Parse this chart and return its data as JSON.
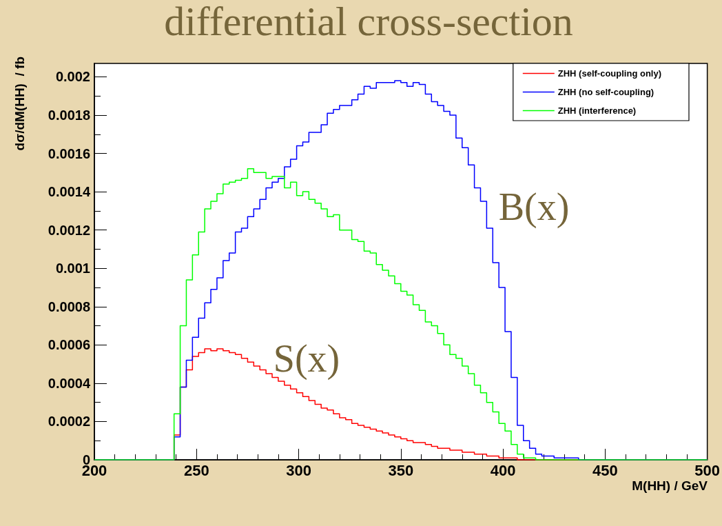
{
  "chart_data": {
    "type": "histogram",
    "title": "differential cross-section",
    "xlabel": "M(HH) / GeV",
    "ylabel": "dσ/dM(HH)  / fb",
    "bins": [
      200,
      203,
      206,
      209,
      212,
      215,
      218,
      221,
      224,
      227,
      230,
      233,
      236,
      239,
      242,
      245,
      248,
      251,
      254,
      257,
      260,
      263,
      266,
      269,
      272,
      275,
      278,
      281,
      284,
      287,
      290,
      293,
      296,
      299,
      302,
      305,
      308,
      311,
      314,
      317,
      320,
      323,
      326,
      329,
      332,
      335,
      338,
      341,
      344,
      347,
      350,
      353,
      356,
      359,
      362,
      365,
      368,
      371,
      374,
      377,
      380,
      383,
      386,
      389,
      392,
      395,
      398,
      401,
      404,
      407,
      410,
      413,
      416,
      419,
      422,
      425,
      428,
      431,
      434,
      437,
      440,
      443,
      446,
      449,
      452,
      455,
      458,
      461,
      464,
      467,
      470,
      473,
      476,
      479,
      482,
      485,
      488,
      491,
      494,
      497,
      500
    ],
    "series": [
      {
        "name": "ZHH (self-coupling only)",
        "color": "#ff0000",
        "values": [
          0,
          0,
          0,
          0,
          0,
          0,
          0,
          0,
          0,
          0,
          0,
          0,
          0,
          0.00013,
          0.00038,
          0.00047,
          0.00054,
          0.00056,
          0.00058,
          0.00057,
          0.00058,
          0.00057,
          0.00056,
          0.00055,
          0.00053,
          0.00051,
          0.00049,
          0.00047,
          0.00045,
          0.00043,
          0.00041,
          0.00039,
          0.00037,
          0.00035,
          0.00033,
          0.00031,
          0.00029,
          0.00027,
          0.00026,
          0.00024,
          0.00022,
          0.00021,
          0.00019,
          0.00018,
          0.00017,
          0.00016,
          0.00015,
          0.00014,
          0.00013,
          0.00012,
          0.00011,
          0.0001,
          9e-05,
          9e-05,
          8e-05,
          7e-05,
          6e-05,
          6e-05,
          5e-05,
          5e-05,
          4e-05,
          4e-05,
          3e-05,
          3e-05,
          2e-05,
          2e-05,
          1e-05,
          1e-05,
          1e-05,
          0,
          0,
          0,
          0,
          0,
          0,
          0,
          0,
          0,
          0,
          0,
          0,
          0,
          0,
          0,
          0,
          0,
          0,
          0,
          0,
          0,
          0,
          0,
          0,
          0,
          0,
          0,
          0,
          0,
          0,
          0
        ]
      },
      {
        "name": "ZHH (no self-coupling)",
        "color": "#0000ff",
        "values": [
          0,
          0,
          0,
          0,
          0,
          0,
          0,
          0,
          0,
          0,
          0,
          0,
          0,
          0.00012,
          0.00038,
          0.00052,
          0.00064,
          0.00074,
          0.00082,
          0.00089,
          0.00095,
          0.00104,
          0.00108,
          0.00119,
          0.00121,
          0.00127,
          0.00131,
          0.00136,
          0.00142,
          0.00145,
          0.00147,
          0.00153,
          0.00157,
          0.00164,
          0.00166,
          0.00171,
          0.00171,
          0.00175,
          0.00181,
          0.00183,
          0.00185,
          0.00185,
          0.00188,
          0.00191,
          0.00195,
          0.00194,
          0.00197,
          0.00197,
          0.00197,
          0.00198,
          0.00197,
          0.00195,
          0.00197,
          0.00196,
          0.00191,
          0.00187,
          0.00185,
          0.00182,
          0.0018,
          0.00168,
          0.00163,
          0.00154,
          0.00142,
          0.00135,
          0.00121,
          0.00103,
          0.0009,
          0.00067,
          0.00043,
          0.00018,
          0.0001,
          6e-05,
          3e-05,
          2e-05,
          2e-05,
          1e-05,
          1e-05,
          1e-05,
          1e-05,
          0,
          0,
          0,
          0,
          0,
          0,
          0,
          0,
          0,
          0,
          0,
          0,
          0,
          0,
          0,
          0,
          0,
          0,
          0,
          0,
          0
        ]
      },
      {
        "name": "ZHH (interference)",
        "color": "#00ff00",
        "values": [
          0,
          0,
          0,
          0,
          0,
          0,
          0,
          0,
          0,
          0,
          0,
          0,
          0,
          0.00024,
          0.0007,
          0.00094,
          0.00107,
          0.00119,
          0.00131,
          0.00135,
          0.00139,
          0.00144,
          0.00145,
          0.00146,
          0.00147,
          0.00152,
          0.0015,
          0.0015,
          0.00147,
          0.00148,
          0.00148,
          0.00142,
          0.00145,
          0.00138,
          0.0014,
          0.00136,
          0.00134,
          0.00131,
          0.00127,
          0.00128,
          0.0012,
          0.0012,
          0.00115,
          0.00114,
          0.00109,
          0.00108,
          0.00102,
          0.00099,
          0.00096,
          0.00092,
          0.00088,
          0.00086,
          0.00081,
          0.00078,
          0.00072,
          0.0007,
          0.00066,
          0.0006,
          0.00055,
          0.00053,
          0.00049,
          0.00045,
          0.00039,
          0.00035,
          0.0003,
          0.00025,
          0.00019,
          0.00015,
          8e-05,
          3e-05,
          1e-05,
          1e-05,
          0,
          0,
          0,
          0,
          0,
          0,
          0,
          0,
          0,
          0,
          0,
          0,
          0,
          0,
          0,
          0,
          0,
          0,
          0,
          0,
          0,
          0,
          0,
          0,
          0,
          0,
          0,
          0
        ]
      }
    ],
    "xlim": [
      200,
      500
    ],
    "xticks": [
      200,
      250,
      300,
      350,
      400,
      450,
      500
    ],
    "ylim": [
      0,
      0.00207
    ],
    "yticks": [
      0,
      0.0002,
      0.0004,
      0.0006,
      0.0008,
      0.001,
      0.0012,
      0.0014,
      0.0016,
      0.0018,
      0.002
    ],
    "grid": false,
    "legend": "top right",
    "annotations": [
      "S(x)",
      "B(x)"
    ]
  }
}
